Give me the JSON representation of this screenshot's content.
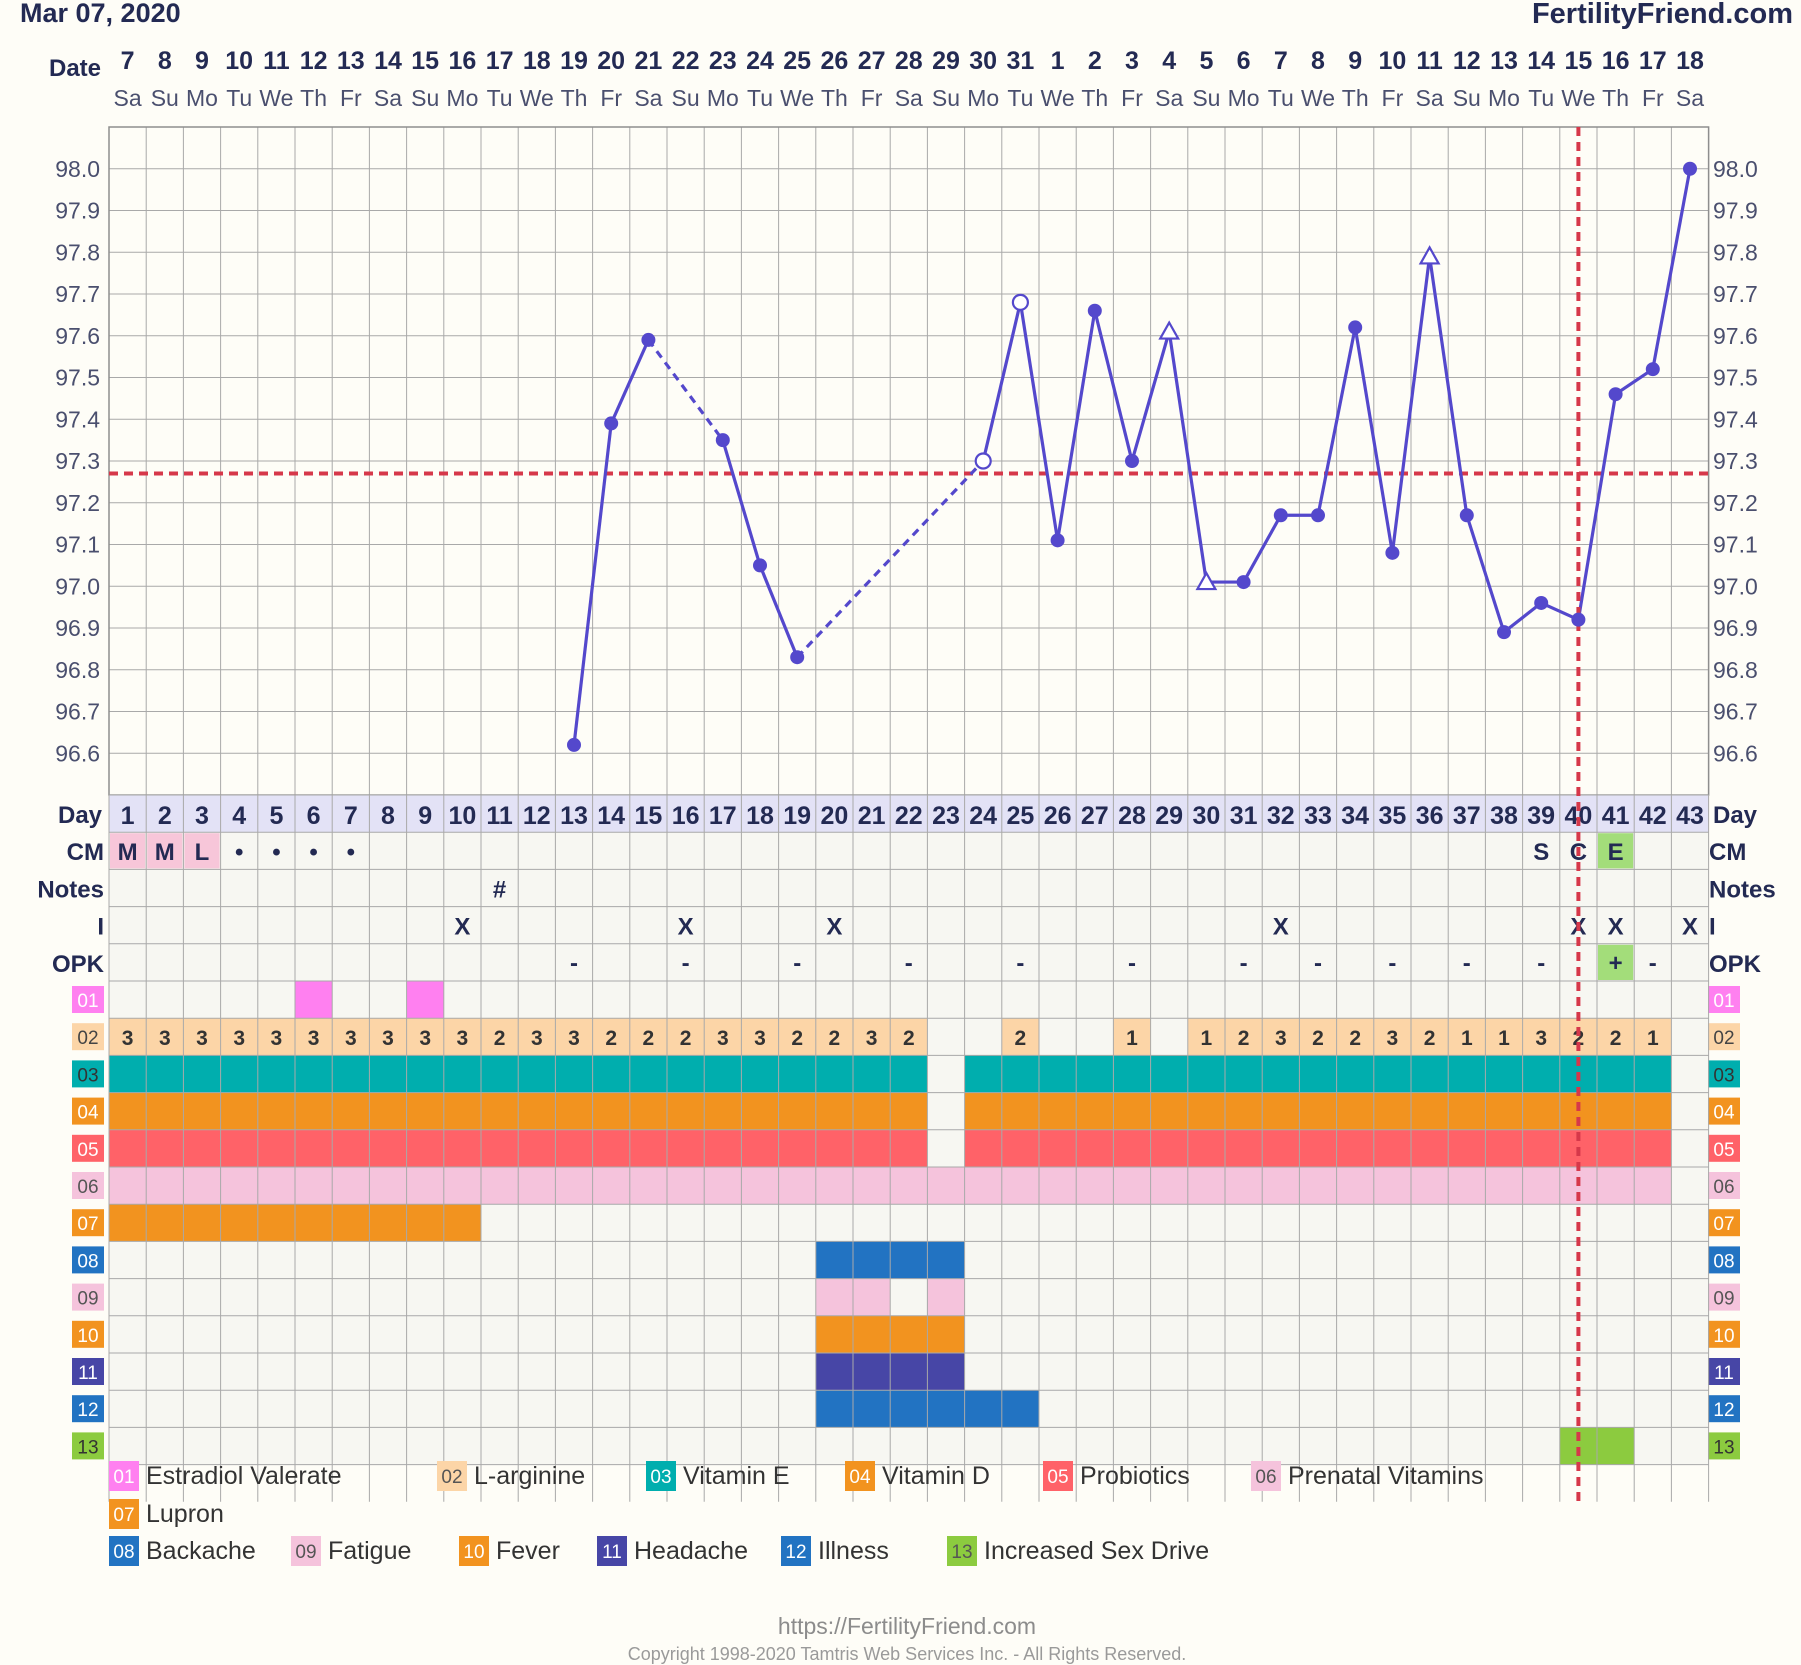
{
  "header": {
    "chart_date": "Mar 07, 2020",
    "brand": "FertilityFriend.com"
  },
  "footer": {
    "url": "https://FertilityFriend.com",
    "copyright": "Copyright 1998-2020 Tamtris Web Services Inc. - All Rights Reserved."
  },
  "colors": {
    "background": "#fefdf7",
    "grid": "#a9a9a9",
    "temp_line": "#5448cc",
    "coverline": "#d6384a",
    "header_text": "#232a53"
  },
  "chart_data": {
    "type": "line",
    "title": "",
    "ylim": [
      96.5,
      98.1
    ],
    "yticks": [
      "98.0",
      "97.9",
      "97.8",
      "97.7",
      "97.6",
      "97.5",
      "97.4",
      "97.3",
      "97.2",
      "97.1",
      "97.0",
      "96.9",
      "96.8",
      "96.7",
      "96.6"
    ],
    "row_labels": {
      "date": "Date",
      "day": "Day",
      "cm": "CM",
      "notes": "Notes",
      "intercourse": "I",
      "opk": "OPK"
    },
    "dates": [
      "7",
      "8",
      "9",
      "10",
      "11",
      "12",
      "13",
      "14",
      "15",
      "16",
      "17",
      "18",
      "19",
      "20",
      "21",
      "22",
      "23",
      "24",
      "25",
      "26",
      "27",
      "28",
      "29",
      "30",
      "31",
      "1",
      "2",
      "3",
      "4",
      "5",
      "6",
      "7",
      "8",
      "9",
      "10",
      "11",
      "12",
      "13",
      "14",
      "15",
      "16",
      "17",
      "18"
    ],
    "weekdays": [
      "Sa",
      "Su",
      "Mo",
      "Tu",
      "We",
      "Th",
      "Fr",
      "Sa",
      "Su",
      "Mo",
      "Tu",
      "We",
      "Th",
      "Fr",
      "Sa",
      "Su",
      "Mo",
      "Tu",
      "We",
      "Th",
      "Fr",
      "Sa",
      "Su",
      "Mo",
      "Tu",
      "We",
      "Th",
      "Fr",
      "Sa",
      "Su",
      "Mo",
      "Tu",
      "We",
      "Th",
      "Fr",
      "Sa",
      "Su",
      "Mo",
      "Tu",
      "We",
      "Th",
      "Fr",
      "Sa"
    ],
    "cycle_days": [
      "1",
      "2",
      "3",
      "4",
      "5",
      "6",
      "7",
      "8",
      "9",
      "10",
      "11",
      "12",
      "13",
      "14",
      "15",
      "16",
      "17",
      "18",
      "19",
      "20",
      "21",
      "22",
      "23",
      "24",
      "25",
      "26",
      "27",
      "28",
      "29",
      "30",
      "31",
      "32",
      "33",
      "34",
      "35",
      "36",
      "37",
      "38",
      "39",
      "40",
      "41",
      "42",
      "43"
    ],
    "temperatures": [
      {
        "day": 13,
        "temp": 96.62,
        "marker": "filled"
      },
      {
        "day": 14,
        "temp": 97.39,
        "marker": "filled"
      },
      {
        "day": 15,
        "temp": 97.59,
        "marker": "filled"
      },
      {
        "day": 17,
        "temp": 97.35,
        "marker": "filled"
      },
      {
        "day": 18,
        "temp": 97.05,
        "marker": "filled"
      },
      {
        "day": 19,
        "temp": 96.83,
        "marker": "filled"
      },
      {
        "day": 24,
        "temp": 97.3,
        "marker": "open-circle"
      },
      {
        "day": 25,
        "temp": 97.68,
        "marker": "open-circle"
      },
      {
        "day": 26,
        "temp": 97.11,
        "marker": "filled"
      },
      {
        "day": 27,
        "temp": 97.66,
        "marker": "filled"
      },
      {
        "day": 28,
        "temp": 97.3,
        "marker": "filled"
      },
      {
        "day": 29,
        "temp": 97.61,
        "marker": "open-triangle"
      },
      {
        "day": 30,
        "temp": 97.01,
        "marker": "open-triangle"
      },
      {
        "day": 31,
        "temp": 97.01,
        "marker": "filled"
      },
      {
        "day": 32,
        "temp": 97.17,
        "marker": "filled"
      },
      {
        "day": 33,
        "temp": 97.17,
        "marker": "filled"
      },
      {
        "day": 34,
        "temp": 97.62,
        "marker": "filled"
      },
      {
        "day": 35,
        "temp": 97.08,
        "marker": "filled"
      },
      {
        "day": 36,
        "temp": 97.79,
        "marker": "open-triangle"
      },
      {
        "day": 37,
        "temp": 97.17,
        "marker": "filled"
      },
      {
        "day": 38,
        "temp": 96.89,
        "marker": "filled"
      },
      {
        "day": 39,
        "temp": 96.96,
        "marker": "filled"
      },
      {
        "day": 40,
        "temp": 96.92,
        "marker": "filled"
      },
      {
        "day": 41,
        "temp": 97.46,
        "marker": "filled"
      },
      {
        "day": 42,
        "temp": 97.52,
        "marker": "filled"
      },
      {
        "day": 43,
        "temp": 98.0,
        "marker": "filled"
      }
    ],
    "dashed_segments": [
      [
        15,
        17
      ],
      [
        19,
        24
      ]
    ],
    "coverline": 97.27,
    "ovulation_day": 40,
    "cm": [
      {
        "day": 1,
        "text": "M",
        "color": "#f7c6d9"
      },
      {
        "day": 2,
        "text": "M",
        "color": "#f7c6d9"
      },
      {
        "day": 3,
        "text": "L",
        "color": "#f7c6d9"
      },
      {
        "day": 4,
        "text": "•"
      },
      {
        "day": 5,
        "text": "•"
      },
      {
        "day": 6,
        "text": "•"
      },
      {
        "day": 7,
        "text": "•"
      },
      {
        "day": 39,
        "text": "S"
      },
      {
        "day": 40,
        "text": "C"
      },
      {
        "day": 41,
        "text": "E",
        "color": "#a3dd7a"
      }
    ],
    "notes": [
      {
        "day": 11,
        "text": "#"
      }
    ],
    "intercourse": [
      10,
      16,
      20,
      32,
      40,
      41,
      43
    ],
    "intercourse_mark": "X",
    "opk": [
      {
        "day": 13,
        "text": "-"
      },
      {
        "day": 16,
        "text": "-"
      },
      {
        "day": 19,
        "text": "-"
      },
      {
        "day": 22,
        "text": "-"
      },
      {
        "day": 25,
        "text": "-"
      },
      {
        "day": 28,
        "text": "-"
      },
      {
        "day": 31,
        "text": "-"
      },
      {
        "day": 33,
        "text": "-"
      },
      {
        "day": 35,
        "text": "-"
      },
      {
        "day": 37,
        "text": "-"
      },
      {
        "day": 39,
        "text": "-"
      },
      {
        "day": 41,
        "text": "+",
        "color": "#a3dd7a"
      },
      {
        "day": 42,
        "text": "-"
      }
    ],
    "custom_rows": [
      {
        "code": "01",
        "color": "#ff80f0",
        "label_color": "#ff80f0",
        "label_text_color": "#ffffff",
        "days": [
          6,
          9
        ]
      },
      {
        "code": "02",
        "color": "#fcd5a7",
        "label_color": "#fcd5a7",
        "label_text_color": "#444444",
        "days": [
          1,
          2,
          3,
          4,
          5,
          6,
          7,
          8,
          9,
          10,
          11,
          12,
          13,
          14,
          15,
          16,
          17,
          18,
          19,
          20,
          21,
          22,
          25,
          28,
          30,
          31,
          32,
          33,
          34,
          35,
          36,
          37,
          38,
          39,
          40,
          41,
          42
        ],
        "values": {
          "1": "3",
          "2": "3",
          "3": "3",
          "4": "3",
          "5": "3",
          "6": "3",
          "7": "3",
          "8": "3",
          "9": "3",
          "10": "3",
          "11": "2",
          "12": "3",
          "13": "3",
          "14": "2",
          "15": "2",
          "16": "2",
          "17": "3",
          "18": "3",
          "19": "2",
          "20": "2",
          "21": "3",
          "22": "2",
          "25": "2",
          "28": "1",
          "30": "1",
          "31": "2",
          "32": "3",
          "33": "2",
          "34": "2",
          "35": "3",
          "36": "2",
          "37": "1",
          "38": "1",
          "39": "3",
          "40": "2",
          "41": "2",
          "42": "1"
        }
      },
      {
        "code": "03",
        "color": "#00aeae",
        "label_color": "#00aeae",
        "label_text_color": "#333333",
        "days": [
          1,
          2,
          3,
          4,
          5,
          6,
          7,
          8,
          9,
          10,
          11,
          12,
          13,
          14,
          15,
          16,
          17,
          18,
          19,
          20,
          21,
          22,
          24,
          25,
          26,
          27,
          28,
          29,
          30,
          31,
          32,
          33,
          34,
          35,
          36,
          37,
          38,
          39,
          40,
          41,
          42
        ]
      },
      {
        "code": "04",
        "color": "#f2931f",
        "label_color": "#f2931f",
        "label_text_color": "#ffffff",
        "days": [
          1,
          2,
          3,
          4,
          5,
          6,
          7,
          8,
          9,
          10,
          11,
          12,
          13,
          14,
          15,
          16,
          17,
          18,
          19,
          20,
          21,
          22,
          24,
          25,
          26,
          27,
          28,
          29,
          30,
          31,
          32,
          33,
          34,
          35,
          36,
          37,
          38,
          39,
          40,
          41,
          42
        ]
      },
      {
        "code": "05",
        "color": "#ff6268",
        "label_color": "#ff6268",
        "label_text_color": "#ffffff",
        "days": [
          1,
          2,
          3,
          4,
          5,
          6,
          7,
          8,
          9,
          10,
          11,
          12,
          13,
          14,
          15,
          16,
          17,
          18,
          19,
          20,
          21,
          22,
          24,
          25,
          26,
          27,
          28,
          29,
          30,
          31,
          32,
          33,
          34,
          35,
          36,
          37,
          38,
          39,
          40,
          41,
          42
        ]
      },
      {
        "code": "06",
        "color": "#f5c3dc",
        "label_color": "#f5c3dc",
        "label_text_color": "#555555",
        "days": [
          1,
          2,
          3,
          4,
          5,
          6,
          7,
          8,
          9,
          10,
          11,
          12,
          13,
          14,
          15,
          16,
          17,
          18,
          19,
          20,
          21,
          22,
          23,
          24,
          25,
          26,
          27,
          28,
          29,
          30,
          31,
          32,
          33,
          34,
          35,
          36,
          37,
          38,
          39,
          40,
          41,
          42
        ]
      },
      {
        "code": "07",
        "color": "#f2931f",
        "label_color": "#f2931f",
        "label_text_color": "#ffffff",
        "days": [
          1,
          2,
          3,
          4,
          5,
          6,
          7,
          8,
          9,
          10
        ]
      },
      {
        "code": "08",
        "color": "#2273c2",
        "label_color": "#2273c2",
        "label_text_color": "#ffffff",
        "days": [
          20,
          21,
          22,
          23
        ]
      },
      {
        "code": "09",
        "color": "#f5c3dc",
        "label_color": "#f5c3dc",
        "label_text_color": "#555555",
        "days": [
          20,
          21,
          23
        ]
      },
      {
        "code": "10",
        "color": "#f2931f",
        "label_color": "#f2931f",
        "label_text_color": "#ffffff",
        "days": [
          20,
          21,
          22,
          23
        ]
      },
      {
        "code": "11",
        "color": "#4746a6",
        "label_color": "#4746a6",
        "label_text_color": "#ffffff",
        "days": [
          20,
          21,
          22,
          23
        ]
      },
      {
        "code": "12",
        "color": "#2273c2",
        "label_color": "#2273c2",
        "label_text_color": "#ffffff",
        "days": [
          20,
          21,
          22,
          23,
          24,
          25
        ]
      },
      {
        "code": "13",
        "color": "#8ccb3f",
        "label_color": "#8ccb3f",
        "label_text_color": "#333333",
        "days": [
          40,
          41
        ]
      }
    ],
    "legend": [
      {
        "code": "01",
        "label": "Estradiol Valerate",
        "color": "#ff80f0"
      },
      {
        "code": "02",
        "label": "L-arginine",
        "color": "#fcd5a7"
      },
      {
        "code": "03",
        "label": "Vitamin E",
        "color": "#00aeae"
      },
      {
        "code": "04",
        "label": "Vitamin D",
        "color": "#f2931f"
      },
      {
        "code": "05",
        "label": "Probiotics",
        "color": "#ff6268"
      },
      {
        "code": "06",
        "label": "Prenatal Vitamins",
        "color": "#f5c3dc"
      },
      {
        "code": "07",
        "label": "Lupron",
        "color": "#f2931f"
      },
      {
        "code": "08",
        "label": "Backache",
        "color": "#2273c2"
      },
      {
        "code": "09",
        "label": "Fatigue",
        "color": "#f5c3dc"
      },
      {
        "code": "10",
        "label": "Fever",
        "color": "#f2931f"
      },
      {
        "code": "11",
        "label": "Headache",
        "color": "#4746a6"
      },
      {
        "code": "12",
        "label": "Illness",
        "color": "#2273c2"
      },
      {
        "code": "13",
        "label": "Increased Sex Drive",
        "color": "#8ccb3f"
      }
    ]
  }
}
